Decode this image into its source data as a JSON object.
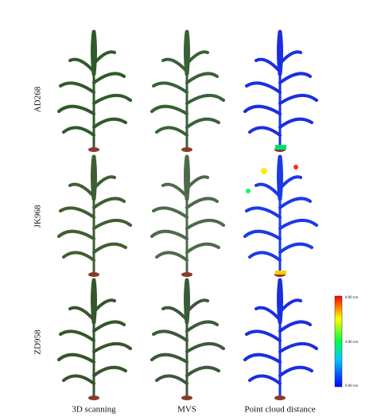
{
  "rows": [
    "AD268",
    "JK968",
    "ZD958"
  ],
  "columns": [
    "3D scanning",
    "MVS",
    "Point cloud distance"
  ],
  "colorbar": {
    "labels": [
      "8.00 cm",
      "4.00 cm",
      "0.00 cm"
    ]
  }
}
